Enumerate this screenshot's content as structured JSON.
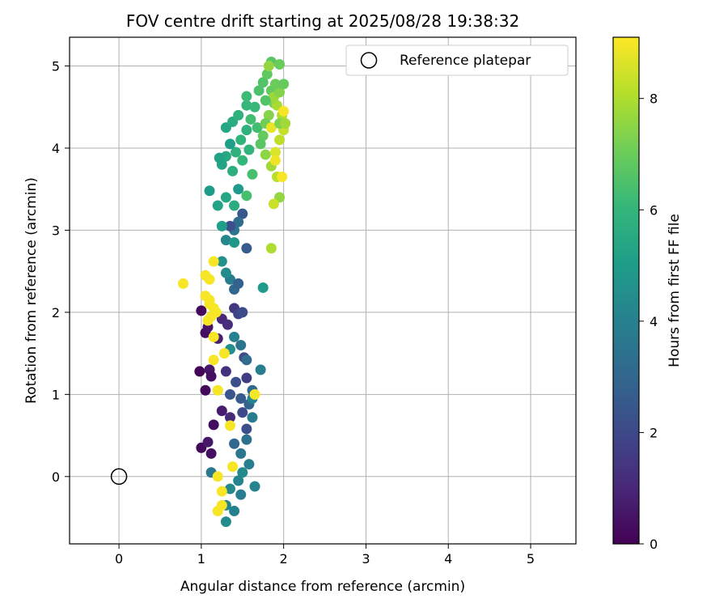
{
  "chart_data": {
    "type": "scatter",
    "title": "FOV centre drift starting at 2025/08/28 19:38:32",
    "xlabel": "Angular distance from reference (arcmin)",
    "ylabel": "Rotation from reference (arcmin)",
    "xlim": [
      -0.6,
      5.55
    ],
    "ylim": [
      -0.82,
      5.35
    ],
    "xticks": [
      0,
      1,
      2,
      3,
      4,
      5
    ],
    "yticks": [
      0,
      1,
      2,
      3,
      4,
      5
    ],
    "grid": true,
    "legend": {
      "location": "top-right",
      "entries": [
        "Reference platepar"
      ]
    },
    "reference_point": {
      "label": "Reference platepar",
      "x": 0,
      "y": 0,
      "marker": "open-circle",
      "color": "#000000"
    },
    "colorbar": {
      "label": "Hours from first FF file",
      "range": [
        0,
        9.1
      ],
      "ticks": [
        0,
        2,
        4,
        6,
        8
      ],
      "colormap": "viridis",
      "stops": [
        "#440154",
        "#482878",
        "#3e4a89",
        "#31688e",
        "#26828e",
        "#1f9e89",
        "#35b779",
        "#6ece58",
        "#b5de2b",
        "#fde725"
      ]
    },
    "series": [
      {
        "marker": "filled-circle",
        "points": [
          {
            "x": 1.0,
            "y": 2.02,
            "c": 0.2
          },
          {
            "x": 1.05,
            "y": 1.75,
            "c": 0.3
          },
          {
            "x": 1.08,
            "y": 1.82,
            "c": 0.5
          },
          {
            "x": 0.98,
            "y": 1.28,
            "c": 0.1
          },
          {
            "x": 1.05,
            "y": 1.05,
            "c": 0.2
          },
          {
            "x": 1.1,
            "y": 1.3,
            "c": 0.6
          },
          {
            "x": 1.12,
            "y": 1.22,
            "c": 0.4
          },
          {
            "x": 1.2,
            "y": 1.68,
            "c": 0.8
          },
          {
            "x": 1.25,
            "y": 1.92,
            "c": 1.0
          },
          {
            "x": 1.15,
            "y": 0.63,
            "c": 0.3
          },
          {
            "x": 1.0,
            "y": 0.35,
            "c": 0.2
          },
          {
            "x": 1.08,
            "y": 0.42,
            "c": 0.6
          },
          {
            "x": 1.12,
            "y": 0.28,
            "c": 0.4
          },
          {
            "x": 1.25,
            "y": 0.8,
            "c": 0.7
          },
          {
            "x": 1.35,
            "y": 0.72,
            "c": 1.1
          },
          {
            "x": 1.3,
            "y": 1.28,
            "c": 1.3
          },
          {
            "x": 1.32,
            "y": 1.85,
            "c": 1.2
          },
          {
            "x": 1.4,
            "y": 2.05,
            "c": 1.5
          },
          {
            "x": 1.45,
            "y": 1.98,
            "c": 1.8
          },
          {
            "x": 1.52,
            "y": 1.45,
            "c": 2.0
          },
          {
            "x": 1.55,
            "y": 1.2,
            "c": 1.6
          },
          {
            "x": 1.42,
            "y": 1.15,
            "c": 2.2
          },
          {
            "x": 1.35,
            "y": 1.0,
            "c": 2.4
          },
          {
            "x": 1.48,
            "y": 0.95,
            "c": 2.6
          },
          {
            "x": 1.58,
            "y": 0.88,
            "c": 2.9
          },
          {
            "x": 1.62,
            "y": 1.05,
            "c": 3.1
          },
          {
            "x": 1.5,
            "y": 0.78,
            "c": 2.0
          },
          {
            "x": 1.4,
            "y": 0.4,
            "c": 3.0
          },
          {
            "x": 1.55,
            "y": 0.45,
            "c": 3.4
          },
          {
            "x": 1.62,
            "y": 0.72,
            "c": 3.8
          },
          {
            "x": 1.55,
            "y": 0.58,
            "c": 2.2
          },
          {
            "x": 1.48,
            "y": 0.28,
            "c": 3.6
          },
          {
            "x": 1.58,
            "y": 0.15,
            "c": 3.9
          },
          {
            "x": 1.45,
            "y": -0.05,
            "c": 4.1
          },
          {
            "x": 1.35,
            "y": -0.15,
            "c": 4.3
          },
          {
            "x": 1.3,
            "y": -0.35,
            "c": 4.2
          },
          {
            "x": 1.48,
            "y": -0.22,
            "c": 3.9
          },
          {
            "x": 1.4,
            "y": -0.42,
            "c": 4.0
          },
          {
            "x": 1.3,
            "y": -0.55,
            "c": 4.4
          },
          {
            "x": 1.65,
            "y": -0.12,
            "c": 4.1
          },
          {
            "x": 1.12,
            "y": 0.05,
            "c": 3.7
          },
          {
            "x": 1.5,
            "y": 0.05,
            "c": 4.3
          },
          {
            "x": 1.55,
            "y": 1.42,
            "c": 3.2
          },
          {
            "x": 1.48,
            "y": 1.6,
            "c": 3.5
          },
          {
            "x": 1.4,
            "y": 1.7,
            "c": 4.0
          },
          {
            "x": 1.35,
            "y": 1.55,
            "c": 4.5
          },
          {
            "x": 1.72,
            "y": 1.3,
            "c": 3.9
          },
          {
            "x": 1.62,
            "y": 0.95,
            "c": 4.1
          },
          {
            "x": 1.5,
            "y": 2.0,
            "c": 2.1
          },
          {
            "x": 1.4,
            "y": 2.28,
            "c": 3.0
          },
          {
            "x": 1.35,
            "y": 2.4,
            "c": 3.8
          },
          {
            "x": 1.3,
            "y": 2.48,
            "c": 4.4
          },
          {
            "x": 1.45,
            "y": 2.35,
            "c": 2.8
          },
          {
            "x": 1.25,
            "y": 2.62,
            "c": 4.6
          },
          {
            "x": 1.3,
            "y": 2.88,
            "c": 4.2
          },
          {
            "x": 1.4,
            "y": 3.0,
            "c": 3.5
          },
          {
            "x": 1.5,
            "y": 3.2,
            "c": 2.5
          },
          {
            "x": 1.45,
            "y": 3.1,
            "c": 3.2
          },
          {
            "x": 1.35,
            "y": 3.05,
            "c": 2.2
          },
          {
            "x": 1.4,
            "y": 2.85,
            "c": 4.8
          },
          {
            "x": 1.55,
            "y": 2.78,
            "c": 2.6
          },
          {
            "x": 1.25,
            "y": 3.05,
            "c": 5.1
          },
          {
            "x": 1.75,
            "y": 2.3,
            "c": 5.0
          },
          {
            "x": 1.2,
            "y": 3.3,
            "c": 5.2
          },
          {
            "x": 1.3,
            "y": 3.4,
            "c": 5.4
          },
          {
            "x": 1.4,
            "y": 3.3,
            "c": 5.6
          },
          {
            "x": 1.45,
            "y": 3.5,
            "c": 4.9
          },
          {
            "x": 1.55,
            "y": 3.42,
            "c": 6.4
          },
          {
            "x": 1.1,
            "y": 3.48,
            "c": 5.0
          },
          {
            "x": 1.25,
            "y": 3.8,
            "c": 5.3
          },
          {
            "x": 1.3,
            "y": 3.9,
            "c": 5.5
          },
          {
            "x": 1.42,
            "y": 3.95,
            "c": 5.8
          },
          {
            "x": 1.5,
            "y": 3.85,
            "c": 6.0
          },
          {
            "x": 1.38,
            "y": 3.72,
            "c": 5.7
          },
          {
            "x": 1.35,
            "y": 4.05,
            "c": 5.1
          },
          {
            "x": 1.48,
            "y": 4.1,
            "c": 5.9
          },
          {
            "x": 1.3,
            "y": 4.25,
            "c": 5.4
          },
          {
            "x": 1.38,
            "y": 4.32,
            "c": 5.6
          },
          {
            "x": 1.55,
            "y": 4.22,
            "c": 5.8
          },
          {
            "x": 1.45,
            "y": 4.4,
            "c": 5.8
          },
          {
            "x": 1.55,
            "y": 4.52,
            "c": 6.0
          },
          {
            "x": 1.55,
            "y": 4.63,
            "c": 6.2
          },
          {
            "x": 1.65,
            "y": 4.5,
            "c": 6.1
          },
          {
            "x": 1.6,
            "y": 4.35,
            "c": 6.3
          },
          {
            "x": 1.22,
            "y": 3.88,
            "c": 5.2
          },
          {
            "x": 1.58,
            "y": 3.98,
            "c": 5.9
          },
          {
            "x": 1.62,
            "y": 3.68,
            "c": 6.4
          },
          {
            "x": 1.68,
            "y": 4.25,
            "c": 6.3
          },
          {
            "x": 1.7,
            "y": 4.7,
            "c": 6.5
          },
          {
            "x": 1.75,
            "y": 4.8,
            "c": 6.6
          },
          {
            "x": 1.8,
            "y": 4.9,
            "c": 6.8
          },
          {
            "x": 1.85,
            "y": 4.7,
            "c": 6.9
          },
          {
            "x": 1.88,
            "y": 4.55,
            "c": 7.2
          },
          {
            "x": 1.82,
            "y": 4.4,
            "c": 7.4
          },
          {
            "x": 1.78,
            "y": 4.3,
            "c": 7.1
          },
          {
            "x": 1.75,
            "y": 4.15,
            "c": 6.9
          },
          {
            "x": 1.72,
            "y": 4.05,
            "c": 6.7
          },
          {
            "x": 1.78,
            "y": 3.92,
            "c": 7.5
          },
          {
            "x": 1.85,
            "y": 3.78,
            "c": 7.8
          },
          {
            "x": 1.92,
            "y": 3.65,
            "c": 8.1
          },
          {
            "x": 1.95,
            "y": 3.4,
            "c": 7.6
          },
          {
            "x": 1.88,
            "y": 3.32,
            "c": 8.4
          },
          {
            "x": 1.9,
            "y": 3.95,
            "c": 8.6
          },
          {
            "x": 1.95,
            "y": 4.1,
            "c": 8.2
          },
          {
            "x": 2.0,
            "y": 4.22,
            "c": 8.3
          },
          {
            "x": 1.98,
            "y": 4.4,
            "c": 8.0
          },
          {
            "x": 1.92,
            "y": 4.52,
            "c": 7.9
          },
          {
            "x": 1.88,
            "y": 4.62,
            "c": 7.7
          },
          {
            "x": 1.95,
            "y": 4.68,
            "c": 7.4
          },
          {
            "x": 1.9,
            "y": 4.78,
            "c": 7.0
          },
          {
            "x": 2.0,
            "y": 4.78,
            "c": 6.9
          },
          {
            "x": 1.85,
            "y": 5.05,
            "c": 6.7
          },
          {
            "x": 1.95,
            "y": 5.02,
            "c": 7.0
          },
          {
            "x": 1.82,
            "y": 5.0,
            "c": 7.6
          },
          {
            "x": 2.0,
            "y": 4.45,
            "c": 9.0
          },
          {
            "x": 1.98,
            "y": 3.65,
            "c": 9.0
          },
          {
            "x": 1.9,
            "y": 3.85,
            "c": 8.9
          },
          {
            "x": 1.85,
            "y": 2.78,
            "c": 8.0
          },
          {
            "x": 1.85,
            "y": 4.25,
            "c": 8.8
          },
          {
            "x": 1.95,
            "y": 4.3,
            "c": 7.3
          },
          {
            "x": 1.78,
            "y": 4.58,
            "c": 6.6
          },
          {
            "x": 2.02,
            "y": 4.3,
            "c": 7.8
          },
          {
            "x": 0.78,
            "y": 2.35,
            "c": 9.0
          },
          {
            "x": 1.05,
            "y": 2.45,
            "c": 9.0
          },
          {
            "x": 1.1,
            "y": 2.4,
            "c": 9.0
          },
          {
            "x": 1.05,
            "y": 2.2,
            "c": 9.0
          },
          {
            "x": 1.1,
            "y": 2.1,
            "c": 9.0
          },
          {
            "x": 1.15,
            "y": 2.05,
            "c": 9.0
          },
          {
            "x": 1.12,
            "y": 1.95,
            "c": 9.0
          },
          {
            "x": 1.08,
            "y": 1.9,
            "c": 9.0
          },
          {
            "x": 1.18,
            "y": 2.0,
            "c": 9.0
          },
          {
            "x": 1.15,
            "y": 1.7,
            "c": 9.0
          },
          {
            "x": 1.15,
            "y": 1.42,
            "c": 9.0
          },
          {
            "x": 1.28,
            "y": 1.5,
            "c": 9.0
          },
          {
            "x": 1.2,
            "y": 1.05,
            "c": 9.0
          },
          {
            "x": 1.65,
            "y": 1.0,
            "c": 9.0
          },
          {
            "x": 1.35,
            "y": 0.62,
            "c": 9.0
          },
          {
            "x": 1.38,
            "y": 0.12,
            "c": 9.0
          },
          {
            "x": 1.2,
            "y": 0.0,
            "c": 9.0
          },
          {
            "x": 1.25,
            "y": -0.18,
            "c": 9.0
          },
          {
            "x": 1.25,
            "y": -0.35,
            "c": 9.0
          },
          {
            "x": 1.2,
            "y": -0.42,
            "c": 9.0
          },
          {
            "x": 1.15,
            "y": 2.62,
            "c": 9.0
          },
          {
            "x": 1.1,
            "y": 2.15,
            "c": 9.0
          }
        ]
      }
    ]
  }
}
